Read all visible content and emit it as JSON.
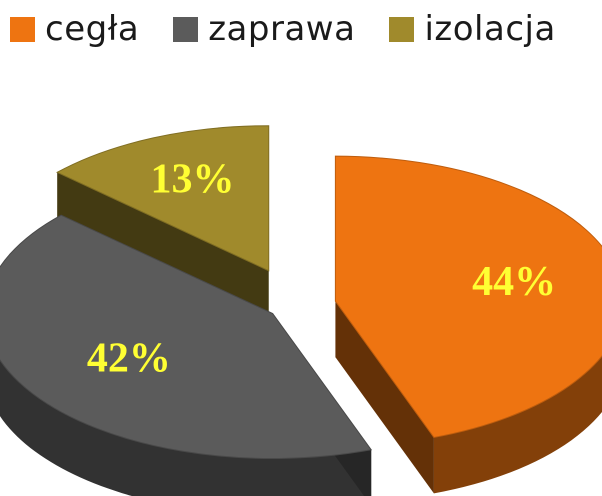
{
  "chart_data": {
    "type": "pie",
    "title": "",
    "legend_position": "top",
    "slices": [
      {
        "label": "cegła",
        "value": 44,
        "display": "44%",
        "color": "#ee7411"
      },
      {
        "label": "zaprawa",
        "value": 42,
        "display": "42%",
        "color": "#5b5b5b"
      },
      {
        "label": "izolacja",
        "value": 13,
        "display": "13%",
        "color": "#a08a2c"
      }
    ]
  }
}
